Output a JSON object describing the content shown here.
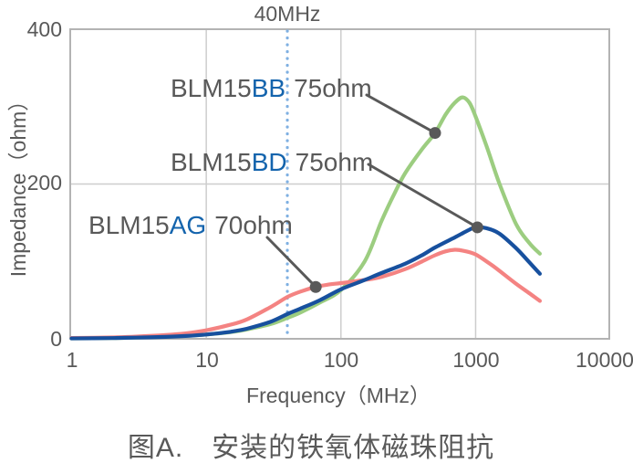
{
  "colors": {
    "text_gray": "#595959",
    "label_blue": "#1464ad",
    "grid": "#cdcdcd",
    "border": "#b3b3b3",
    "callout": "#595959",
    "marker_blue": "#7fb0e2",
    "series_green": "#9ccd80",
    "series_red": "#f48382",
    "series_blue": "#17509e"
  },
  "chart": {
    "marker_label": "40MHz",
    "y_axis": {
      "title": "Impedance（ohm）",
      "ticks": {
        "t400": "400",
        "t200": "200",
        "t0": "0"
      }
    },
    "x_axis": {
      "title": "Frequency（MHz）",
      "ticks": {
        "t1": "1",
        "t10": "10",
        "t100": "100",
        "t1000": "1000",
        "t10000": "10000"
      }
    },
    "legend": {
      "bb": {
        "prefix": "BLM15",
        "code": "BB",
        "value": "75ohm"
      },
      "bd": {
        "prefix": "BLM15",
        "code": "BD",
        "value": "75ohm"
      },
      "ag": {
        "prefix": "BLM15",
        "code": "AG",
        "value": "70ohm"
      }
    }
  },
  "caption": "图A.　安装的铁氧体磁珠阻抗",
  "chart_data": {
    "type": "line",
    "title": "",
    "xlabel": "Frequency（MHz）",
    "ylabel": "Impedance（ohm）",
    "x_axis": {
      "scale": "log",
      "range_mhz": [
        1,
        10000
      ],
      "ticks": [
        1,
        10,
        100,
        1000,
        10000
      ]
    },
    "y_axis": {
      "range_ohm": [
        0,
        400
      ],
      "ticks": [
        0,
        200,
        400
      ]
    },
    "grid": {
      "x_lines_mhz": [
        10,
        100,
        1000
      ],
      "y_lines_ohm": [
        200
      ]
    },
    "marker": {
      "label": "40MHz",
      "x_mhz": 40,
      "style": "dotted",
      "color": "#7fb0e2"
    },
    "series": [
      {
        "name": "BLM15BB",
        "spec": "75ohm",
        "color": "#9ccd80",
        "points": [
          [
            1,
            0.5
          ],
          [
            2,
            1
          ],
          [
            3,
            1.6
          ],
          [
            5,
            2.6
          ],
          [
            7,
            3.8
          ],
          [
            10,
            5.5
          ],
          [
            15,
            8.5
          ],
          [
            20,
            12
          ],
          [
            30,
            19
          ],
          [
            40,
            27
          ],
          [
            50,
            34
          ],
          [
            70,
            47
          ],
          [
            100,
            63
          ],
          [
            150,
            100
          ],
          [
            200,
            152
          ],
          [
            250,
            188
          ],
          [
            300,
            214
          ],
          [
            400,
            245
          ],
          [
            500,
            266
          ],
          [
            600,
            290
          ],
          [
            700,
            305
          ],
          [
            800,
            312
          ],
          [
            900,
            305
          ],
          [
            1000,
            287
          ],
          [
            1200,
            250
          ],
          [
            1500,
            201
          ],
          [
            2000,
            148
          ],
          [
            2500,
            124
          ],
          [
            3000,
            110
          ]
        ]
      },
      {
        "name": "BLM15AG",
        "spec": "70ohm",
        "color": "#f48382",
        "points": [
          [
            1,
            1
          ],
          [
            2,
            1.8
          ],
          [
            3,
            2.8
          ],
          [
            5,
            4.8
          ],
          [
            7,
            7
          ],
          [
            10,
            11
          ],
          [
            15,
            18
          ],
          [
            20,
            25
          ],
          [
            30,
            41
          ],
          [
            40,
            54
          ],
          [
            50,
            61
          ],
          [
            65,
            67
          ],
          [
            80,
            70
          ],
          [
            100,
            72
          ],
          [
            150,
            76
          ],
          [
            200,
            80
          ],
          [
            300,
            90
          ],
          [
            400,
            100
          ],
          [
            500,
            108
          ],
          [
            600,
            113
          ],
          [
            700,
            115
          ],
          [
            800,
            114
          ],
          [
            1000,
            109
          ],
          [
            1300,
            96
          ],
          [
            1500,
            88
          ],
          [
            2000,
            71
          ],
          [
            2500,
            59
          ],
          [
            3000,
            49
          ]
        ]
      },
      {
        "name": "BLM15BD",
        "spec": "75ohm",
        "color": "#17509e",
        "points": [
          [
            1,
            0.5
          ],
          [
            2,
            1
          ],
          [
            3,
            1.5
          ],
          [
            5,
            2.5
          ],
          [
            7,
            3.6
          ],
          [
            10,
            5.5
          ],
          [
            15,
            9
          ],
          [
            20,
            13
          ],
          [
            30,
            22
          ],
          [
            40,
            32
          ],
          [
            50,
            39
          ],
          [
            70,
            50
          ],
          [
            100,
            64
          ],
          [
            150,
            76
          ],
          [
            200,
            85
          ],
          [
            300,
            97
          ],
          [
            400,
            108
          ],
          [
            500,
            118
          ],
          [
            700,
            131
          ],
          [
            900,
            141
          ],
          [
            1000,
            144
          ],
          [
            1200,
            143
          ],
          [
            1500,
            136
          ],
          [
            2000,
            117
          ],
          [
            2500,
            99
          ],
          [
            3000,
            84
          ]
        ]
      }
    ],
    "callouts": [
      {
        "series": "BLM15BB",
        "at_mhz": 500,
        "at_ohm": 266
      },
      {
        "series": "BLM15BD",
        "at_mhz": 1030,
        "at_ohm": 144
      },
      {
        "series": "BLM15AG",
        "at_mhz": 65,
        "at_ohm": 67
      }
    ]
  }
}
